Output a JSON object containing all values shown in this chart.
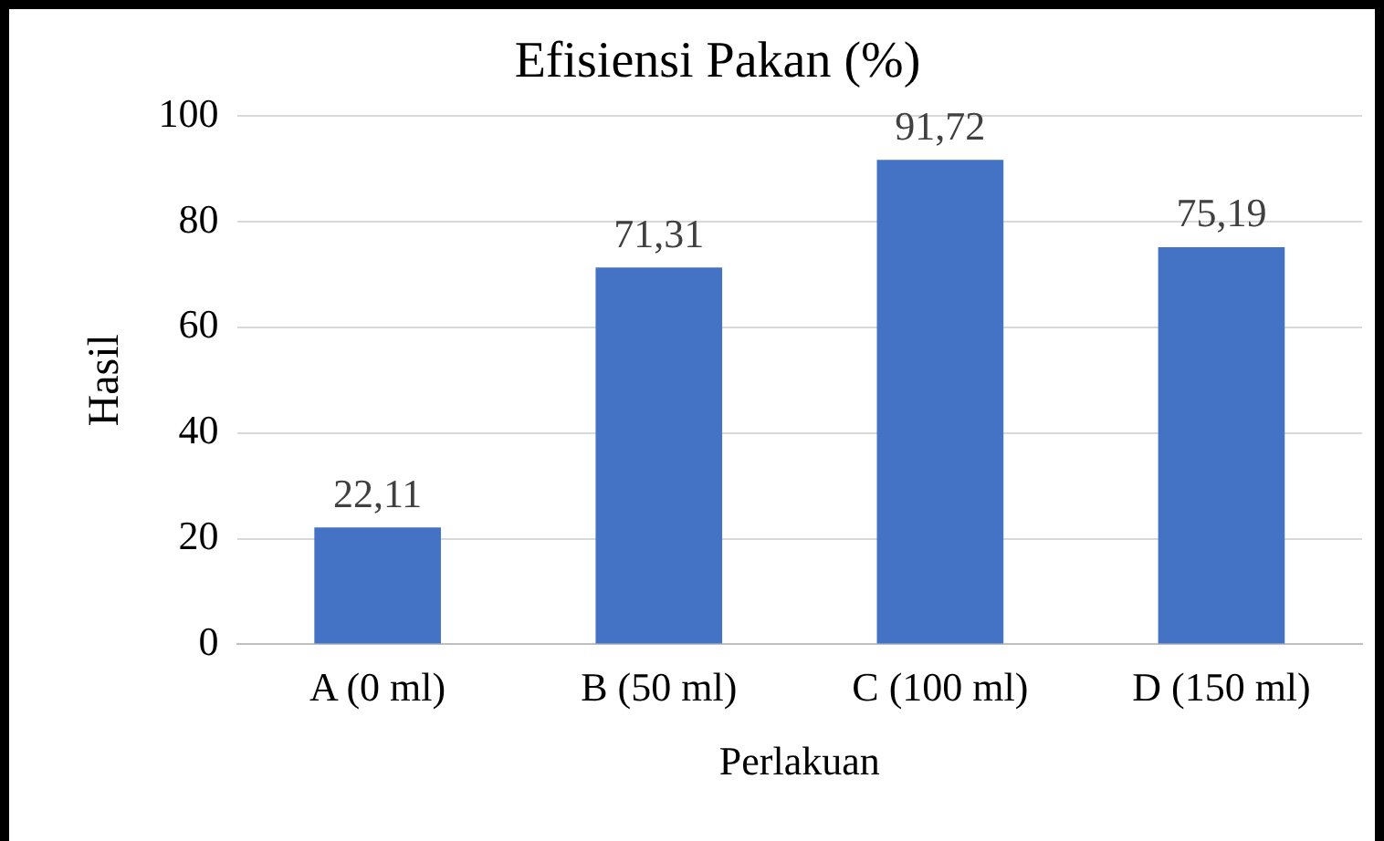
{
  "chart_data": {
    "type": "bar",
    "title": "Efisiensi Pakan (%)",
    "xlabel": "Perlakuan",
    "ylabel": "Hasil",
    "categories": [
      "A (0 ml)",
      "B (50 ml)",
      "C (100 ml)",
      "D (150 ml)"
    ],
    "values": [
      22.11,
      71.31,
      91.72,
      75.19
    ],
    "value_labels": [
      "22,11",
      "71,31",
      "91,72",
      "75,19"
    ],
    "color": "#4472c4",
    "ylim": [
      0,
      100
    ],
    "yticks": [
      0,
      20,
      40,
      60,
      80,
      100
    ],
    "grid": "y",
    "legend": false
  }
}
